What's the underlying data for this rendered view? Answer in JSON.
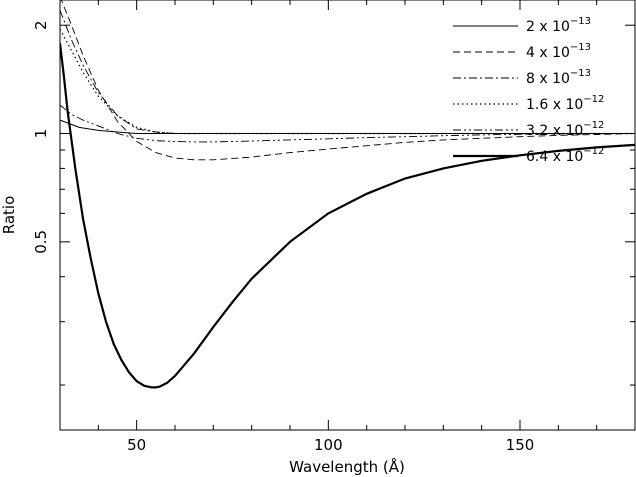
{
  "chart_data": {
    "type": "line",
    "xlabel": "Wavelength (Å)",
    "ylabel": "Ratio",
    "xlim": [
      30,
      180
    ],
    "ylim": [
      0.15,
      2.35
    ],
    "y_scale": "log",
    "x_ticks": [
      {
        "value": 50,
        "label": "50"
      },
      {
        "value": 100,
        "label": "100"
      },
      {
        "value": 150,
        "label": "150"
      }
    ],
    "y_ticks": [
      {
        "value": 0.5,
        "label": "0.5"
      },
      {
        "value": 1,
        "label": "1"
      },
      {
        "value": 2,
        "label": "2"
      }
    ],
    "legend_position": "top-right",
    "series": [
      {
        "name": "2 x 10^-13",
        "label_base": "2 x 10",
        "label_exp": "−13",
        "style": "solid-thin",
        "x": [
          30,
          32,
          35,
          40,
          45,
          50,
          55,
          60,
          70,
          80,
          100,
          130,
          180
        ],
        "y": [
          1.09,
          1.07,
          1.04,
          1.02,
          1.01,
          1.0,
          1.0,
          1.0,
          1.0,
          1.0,
          1.0,
          1.0,
          1.0
        ]
      },
      {
        "name": "4 x 10^-13",
        "label_base": "4 x 10",
        "label_exp": "−13",
        "style": "dashed",
        "x": [
          30,
          33,
          36,
          40,
          45,
          50,
          55,
          60,
          65,
          70,
          80,
          90,
          100,
          110,
          120,
          130,
          140,
          150,
          160,
          170,
          180
        ],
        "y": [
          2.4,
          2.0,
          1.65,
          1.32,
          1.08,
          0.95,
          0.885,
          0.855,
          0.845,
          0.845,
          0.86,
          0.885,
          0.905,
          0.925,
          0.945,
          0.96,
          0.97,
          0.98,
          0.988,
          0.994,
          1.0
        ]
      },
      {
        "name": "8 x 10^-13",
        "label_base": "8 x 10",
        "label_exp": "−13",
        "style": "dashdot",
        "x": [
          30,
          33,
          36,
          40,
          45,
          50,
          55,
          60,
          70,
          80,
          100,
          130,
          180
        ],
        "y": [
          2.2,
          1.82,
          1.55,
          1.3,
          1.12,
          1.03,
          1.01,
          1.0,
          1.0,
          1.0,
          1.0,
          1.0,
          1.0
        ]
      },
      {
        "name": "1.6 x 10^-12",
        "label_base": "1.6 x 10",
        "label_exp": "−12",
        "style": "dotted",
        "x": [
          30,
          33,
          36,
          40,
          45,
          50,
          55,
          60,
          70,
          80,
          100,
          130,
          180
        ],
        "y": [
          1.95,
          1.7,
          1.48,
          1.27,
          1.12,
          1.04,
          1.01,
          1.0,
          1.0,
          1.0,
          1.0,
          1.0,
          1.0
        ]
      },
      {
        "name": "3.2 x 10^-12",
        "label_base": "3.2 x 10",
        "label_exp": "−12",
        "style": "dashdotdot",
        "x": [
          30,
          33,
          36,
          40,
          45,
          50,
          55,
          60,
          65,
          70,
          75,
          80,
          90,
          100,
          110,
          120,
          130,
          140,
          150,
          160,
          170,
          180
        ],
        "y": [
          1.2,
          1.13,
          1.09,
          1.05,
          1.0,
          0.97,
          0.955,
          0.95,
          0.948,
          0.948,
          0.95,
          0.953,
          0.96,
          0.967,
          0.974,
          0.98,
          0.986,
          0.991,
          0.995,
          0.998,
          0.999,
          1.0
        ]
      },
      {
        "name": "6.4 x 10^-12",
        "label_base": "6.4 x 10",
        "label_exp": "−12",
        "style": "solid-thick",
        "x": [
          30,
          31,
          32,
          34,
          36,
          38,
          40,
          42,
          44,
          46,
          48,
          50,
          52,
          54,
          55,
          56,
          58,
          60,
          65,
          70,
          75,
          80,
          90,
          100,
          110,
          120,
          130,
          140,
          150,
          160,
          170,
          180
        ],
        "y": [
          1.78,
          1.45,
          1.15,
          0.8,
          0.58,
          0.45,
          0.36,
          0.3,
          0.26,
          0.235,
          0.217,
          0.205,
          0.199,
          0.197,
          0.197,
          0.198,
          0.203,
          0.212,
          0.245,
          0.29,
          0.34,
          0.395,
          0.5,
          0.6,
          0.68,
          0.75,
          0.8,
          0.84,
          0.87,
          0.895,
          0.915,
          0.93
        ]
      }
    ]
  }
}
